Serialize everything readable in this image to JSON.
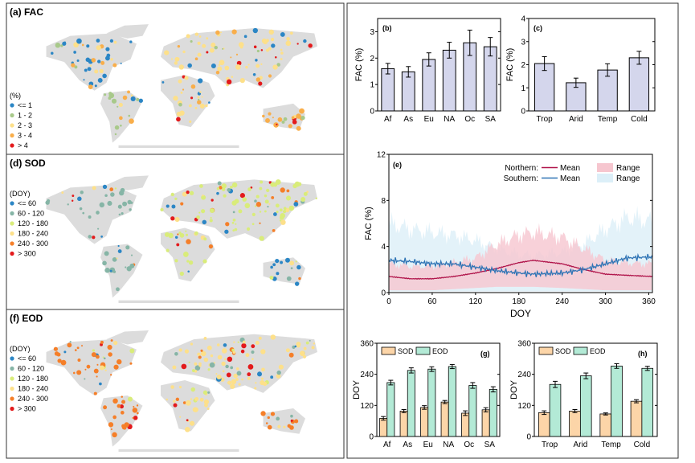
{
  "colors": {
    "land": "#dcdcdc",
    "bar_fac": "#d4d6ec",
    "sod": "#fcd5a8",
    "eod": "#b3ead6",
    "north": "#b0144a",
    "south": "#2f74b5",
    "north_range": "#f6c6cf",
    "south_range": "#dceff8"
  },
  "maps": [
    {
      "title": "(a) FAC",
      "legend_title": "(%)",
      "classes": [
        "<= 1",
        "1 - 2",
        "2 - 3",
        "3 - 4",
        "> 4"
      ],
      "class_colors": [
        "#2b86c5",
        "#a8c98a",
        "#fde08a",
        "#f9ae4a",
        "#e31a1c"
      ],
      "dominant": [
        0,
        1,
        1,
        2,
        3
      ]
    },
    {
      "title": "(d) SOD",
      "legend_title": "(DOY)",
      "classes": [
        "<= 60",
        "60 - 120",
        "120 - 180",
        "180 - 240",
        "240 - 300",
        "> 300"
      ],
      "class_colors": [
        "#2b86c5",
        "#86b5a6",
        "#d9ec7a",
        "#fde08a",
        "#f57f29",
        "#e31a1c"
      ],
      "dominant": [
        1,
        2,
        1,
        2,
        0
      ]
    },
    {
      "title": "(f) EOD",
      "legend_title": "(DOY)",
      "classes": [
        "<= 60",
        "60 - 120",
        "120 - 180",
        "180 - 240",
        "240 - 300",
        "> 300"
      ],
      "class_colors": [
        "#2b86c5",
        "#86b5a6",
        "#d9ec7a",
        "#fde08a",
        "#f57f29",
        "#e31a1c"
      ],
      "dominant": [
        4,
        5,
        4,
        3,
        4
      ]
    }
  ],
  "chart_data": [
    {
      "panel": "(b)",
      "type": "bar",
      "ylabel": "FAC (%)",
      "ylim": [
        0,
        3.5
      ],
      "yticks": [
        0,
        1,
        2,
        3
      ],
      "categories": [
        "Af",
        "As",
        "Eu",
        "NA",
        "Oc",
        "SA"
      ],
      "values": [
        1.6,
        1.48,
        1.95,
        2.3,
        2.58,
        2.43
      ],
      "errors": [
        0.2,
        0.2,
        0.25,
        0.3,
        0.48,
        0.35
      ]
    },
    {
      "panel": "(c)",
      "type": "bar",
      "ylabel": "FAC (%)",
      "ylim": [
        0,
        4
      ],
      "yticks": [
        0,
        1,
        2,
        3,
        4
      ],
      "categories": [
        "Trop",
        "Arid",
        "Temp",
        "Cold"
      ],
      "values": [
        2.05,
        1.22,
        1.77,
        2.3
      ],
      "errors": [
        0.3,
        0.2,
        0.27,
        0.28
      ]
    },
    {
      "panel": "(e)",
      "type": "line",
      "xlabel": "DOY",
      "ylabel": "FAC (%)",
      "xlim": [
        0,
        365
      ],
      "ylim": [
        0,
        12
      ],
      "xticks": [
        0,
        60,
        120,
        180,
        240,
        300,
        360
      ],
      "yticks": [
        0,
        4,
        8,
        12
      ],
      "legend": {
        "north_label": "Northern:",
        "south_label": "Southern:",
        "mean_label": "Mean",
        "range_label": "Range"
      },
      "x": [
        0,
        30,
        60,
        90,
        120,
        150,
        180,
        200,
        240,
        270,
        300,
        330,
        365
      ],
      "series": [
        {
          "name": "Northern Mean",
          "values": [
            1.4,
            1.2,
            1.2,
            1.4,
            1.7,
            2.1,
            2.6,
            2.8,
            2.5,
            2.0,
            1.6,
            1.5,
            1.4
          ],
          "range_upper": [
            2.5,
            2.3,
            2.3,
            2.6,
            3.0,
            4.2,
            5.0,
            5.2,
            4.8,
            3.8,
            2.8,
            2.6,
            2.5
          ],
          "range_lower": [
            0.2,
            0.2,
            0.2,
            0.3,
            0.4,
            0.5,
            0.5,
            0.5,
            0.4,
            0.3,
            0.2,
            0.2,
            0.2
          ]
        },
        {
          "name": "Southern Mean",
          "values": [
            2.8,
            2.7,
            2.5,
            2.5,
            2.2,
            1.9,
            1.7,
            1.6,
            1.7,
            2.0,
            2.5,
            3.0,
            3.1
          ],
          "range_upper": [
            6.0,
            5.5,
            5.2,
            5.0,
            4.5,
            3.8,
            3.3,
            3.2,
            3.5,
            4.2,
            5.5,
            6.5,
            6.2
          ],
          "range_lower": [
            0.1,
            0.1,
            0.1,
            0.1,
            0.1,
            0.1,
            0.1,
            0.1,
            0.1,
            0.1,
            0.1,
            0.1,
            0.1
          ]
        }
      ]
    },
    {
      "panel": "(g)",
      "type": "bar",
      "ylabel": "DOY",
      "ylim": [
        0,
        360
      ],
      "yticks": [
        0,
        120,
        240,
        360
      ],
      "categories": [
        "Af",
        "As",
        "Eu",
        "NA",
        "Oc",
        "SA"
      ],
      "series": [
        {
          "name": "SOD",
          "values": [
            70,
            98,
            112,
            133,
            90,
            103
          ],
          "errors": [
            7,
            6,
            7,
            6,
            9,
            8
          ]
        },
        {
          "name": "EOD",
          "values": [
            208,
            255,
            260,
            270,
            197,
            182
          ],
          "errors": [
            9,
            10,
            9,
            8,
            11,
            10
          ]
        }
      ]
    },
    {
      "panel": "(h)",
      "type": "bar",
      "ylabel": "DOY",
      "ylim": [
        0,
        360
      ],
      "yticks": [
        0,
        120,
        240,
        360
      ],
      "categories": [
        "Trop",
        "Arid",
        "Temp",
        "Cold"
      ],
      "series": [
        {
          "name": "SOD",
          "values": [
            92,
            98,
            87,
            136
          ],
          "errors": [
            7,
            6,
            4,
            6
          ]
        },
        {
          "name": "EOD",
          "values": [
            201,
            234,
            272,
            263
          ],
          "errors": [
            12,
            11,
            9,
            8
          ]
        }
      ]
    }
  ]
}
